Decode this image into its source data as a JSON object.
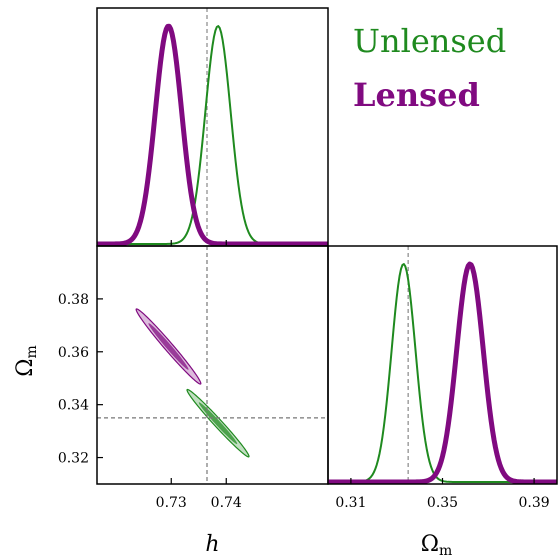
{
  "chart_data": {
    "type": "corner",
    "parameters": [
      {
        "symbol": "h",
        "label": "h",
        "fiducial": 0.7365,
        "range": [
          0.7165,
          0.7585
        ],
        "ticks": [
          0.73,
          0.74
        ],
        "tick_labels": [
          "0.73",
          "0.74"
        ]
      },
      {
        "symbol": "Omega_m",
        "label": "Ωm",
        "label_main": "Ω",
        "label_sub": "m",
        "fiducial": 0.335,
        "range": [
          0.3,
          0.4
        ],
        "ticks": [
          0.31,
          0.35,
          0.39
        ],
        "tick_labels": [
          "0.31",
          "0.35",
          "0.39"
        ],
        "joint_range": [
          0.31,
          0.4
        ],
        "joint_ticks": [
          0.32,
          0.34,
          0.36,
          0.38
        ],
        "joint_tick_labels": [
          "0.32",
          "0.34",
          "0.36",
          "0.38"
        ]
      }
    ],
    "series": [
      {
        "name": "Unlensed",
        "color": "#1f8a1f",
        "linewidth": 2,
        "h": {
          "mean": 0.7385,
          "sigma": 0.0023
        },
        "Omega_m": {
          "mean": 0.333,
          "sigma": 0.0052
        },
        "correlation": -0.985
      },
      {
        "name": "Lensed",
        "color": "#800a80",
        "linewidth": 5,
        "h": {
          "mean": 0.7295,
          "sigma": 0.0024
        },
        "Omega_m": {
          "mean": 0.362,
          "sigma": 0.0058
        },
        "correlation": -0.985
      }
    ],
    "legend": {
      "position": "top-right",
      "entries": [
        "Unlensed",
        "Lensed"
      ]
    }
  }
}
